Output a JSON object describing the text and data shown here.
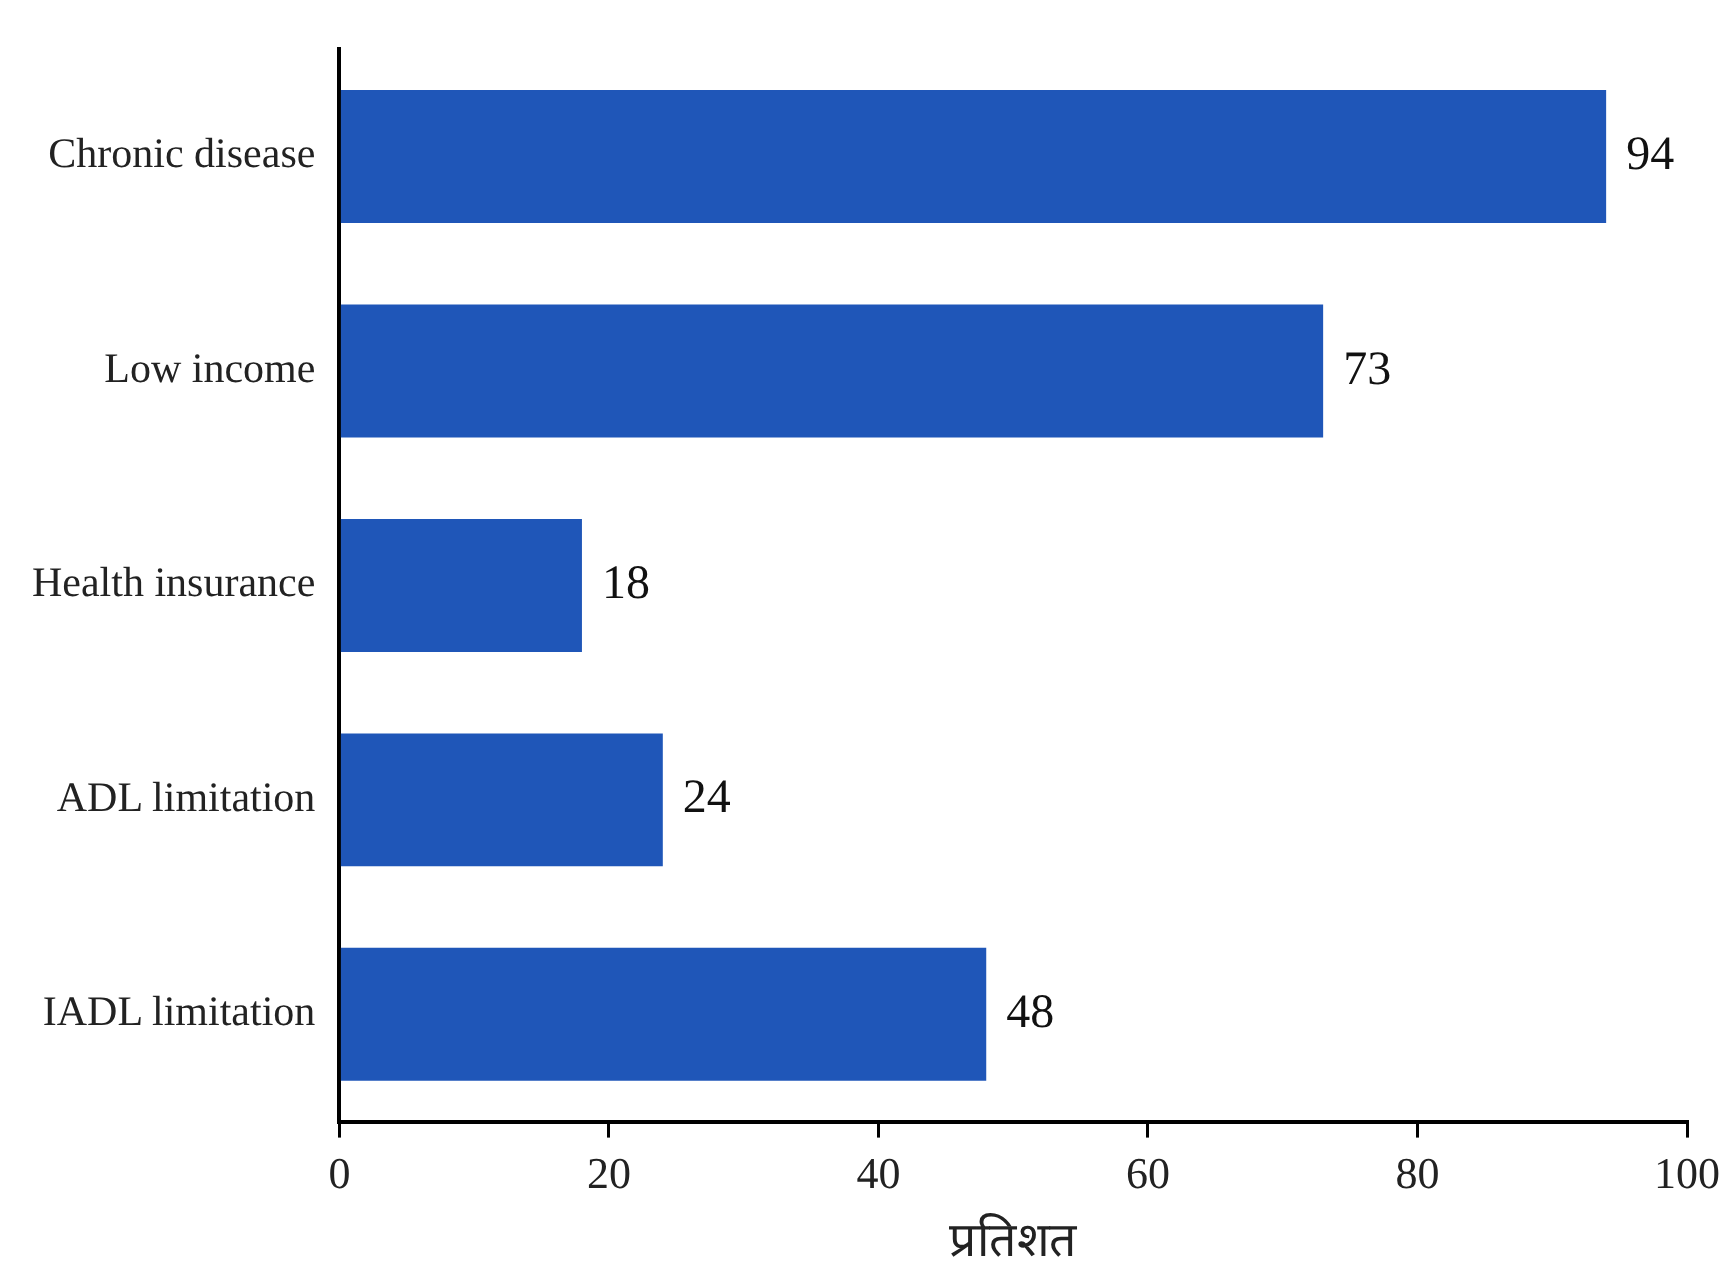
{
  "chart_data": {
    "type": "bar",
    "orientation": "horizontal",
    "xlabel": "प्रतिशत",
    "categories": [
      "Chronic disease",
      "Low income",
      "Health insurance",
      "ADL limitation",
      "IADL limitation"
    ],
    "values": [
      94,
      73,
      18,
      24,
      48
    ],
    "color": "#1f56b8",
    "xlim": [
      0,
      100
    ],
    "xticks": [
      0,
      20,
      40,
      60,
      80,
      100
    ],
    "grid": false,
    "legend": false,
    "data_labels": true
  }
}
